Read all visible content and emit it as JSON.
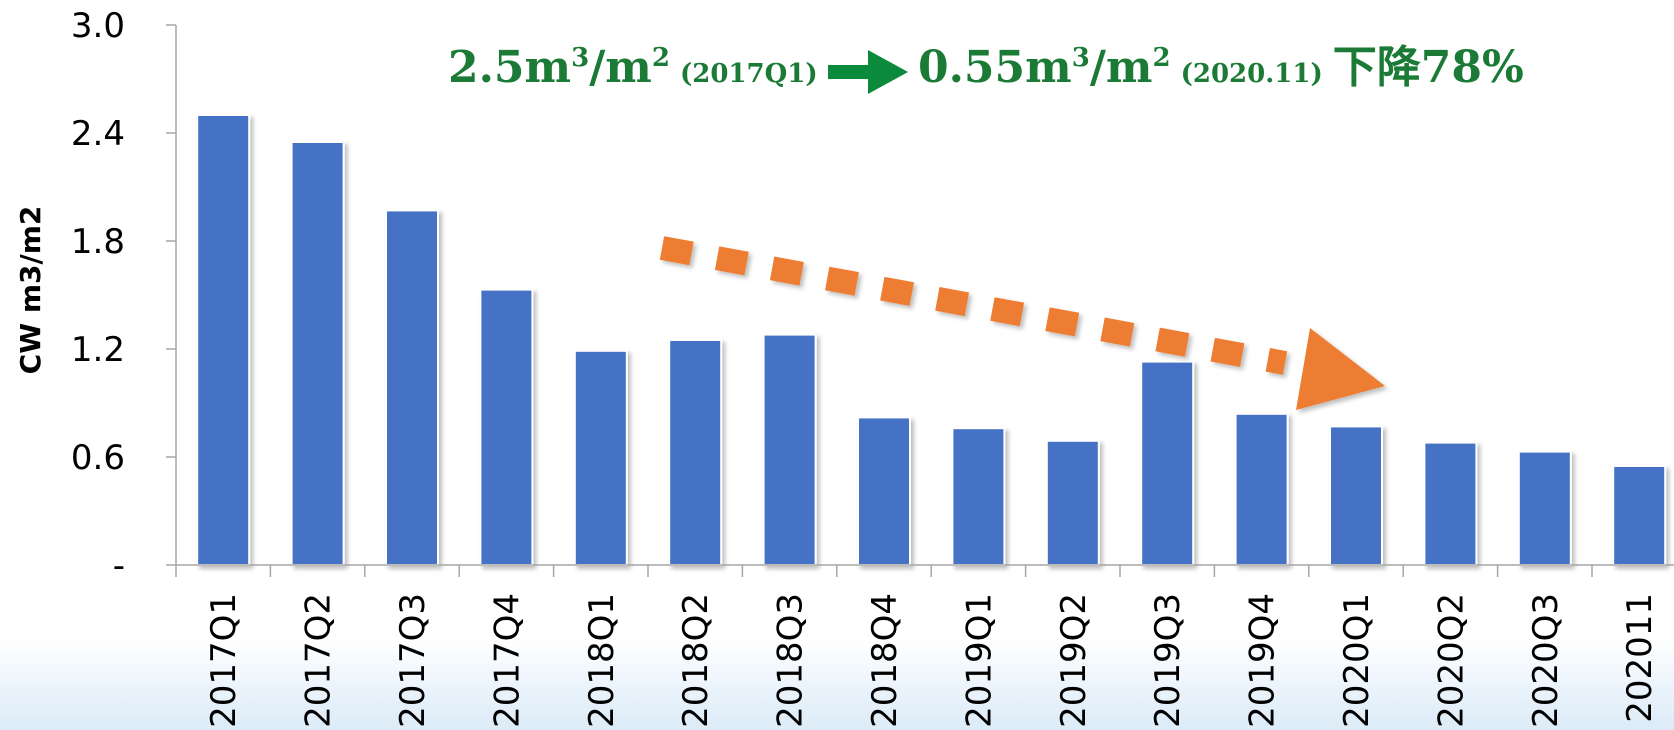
{
  "chart_data": {
    "type": "bar",
    "title": "",
    "xlabel": "",
    "ylabel": "CW m3/m2",
    "ylim": [
      0,
      3.0
    ],
    "yticks": [
      {
        "value": 0,
        "label": "-"
      },
      {
        "value": 0.6,
        "label": "0.6"
      },
      {
        "value": 1.2,
        "label": "1.2"
      },
      {
        "value": 1.8,
        "label": "1.8"
      },
      {
        "value": 2.4,
        "label": "2.4"
      },
      {
        "value": 3.0,
        "label": "3.0"
      }
    ],
    "categories": [
      "2017Q1",
      "2017Q2",
      "2017Q3",
      "2017Q4",
      "2018Q1",
      "2018Q2",
      "2018Q3",
      "2018Q4",
      "2019Q1",
      "2019Q2",
      "2019Q3",
      "2019Q4",
      "2020Q1",
      "2020Q2",
      "2020Q3",
      "202011"
    ],
    "values": [
      2.5,
      2.35,
      1.97,
      1.53,
      1.19,
      1.25,
      1.28,
      0.82,
      0.76,
      0.69,
      1.13,
      0.84,
      0.77,
      0.68,
      0.63,
      0.55
    ],
    "grid": false,
    "legend": "none",
    "bar_color": "#4472c4",
    "annotation": {
      "from_value": "2.5m",
      "from_sup": "3",
      "from_unit": "/m",
      "from_unit_sup": "2",
      "from_period": "(2017Q1)",
      "to_value": "0.55m",
      "to_sup": "3",
      "to_unit": "/m",
      "to_unit_sup": "2",
      "to_period": "(2020.11)",
      "decline": "下降78%",
      "text_color": "#1b7a36",
      "arrow_color": "#0a8a3a",
      "trend_arrow_color": "#ed7d31"
    }
  }
}
